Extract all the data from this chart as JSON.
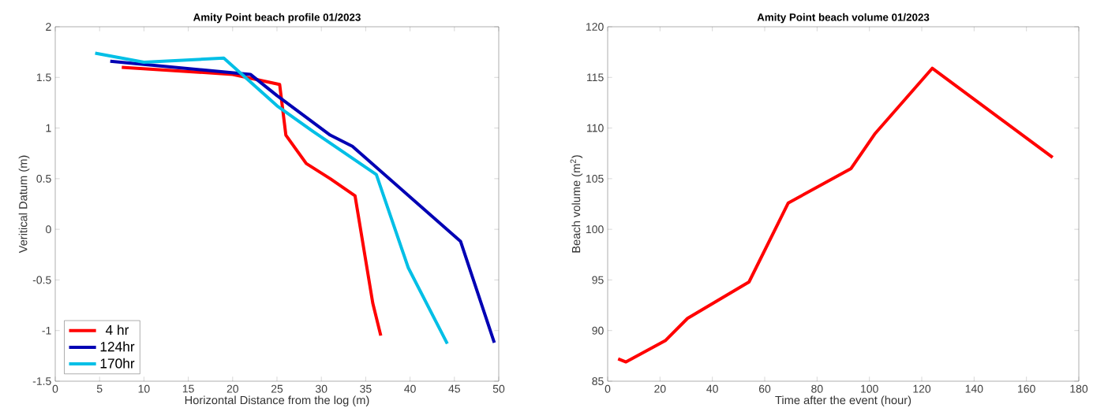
{
  "chart_data": [
    {
      "type": "line",
      "title": "Amity Point beach profile 01/2023",
      "xlabel": "Horizontal Distance from the log (m)",
      "ylabel": "Veritical Datum (m)",
      "xlim": [
        0,
        50
      ],
      "ylim": [
        -1.5,
        2
      ],
      "xticks": [
        0,
        5,
        10,
        15,
        20,
        25,
        30,
        35,
        40,
        45,
        50
      ],
      "yticks": [
        -1.5,
        -1,
        -0.5,
        0,
        0.5,
        1,
        1.5,
        2
      ],
      "legend": "bottom left",
      "grid": false,
      "series": [
        {
          "name": "4 hr",
          "color": "#ff0000",
          "x": [
            7.5,
            20,
            25.3,
            26,
            28.3,
            31,
            33.8,
            35.8,
            36.7
          ],
          "values": [
            1.6,
            1.53,
            1.43,
            0.93,
            0.65,
            0.5,
            0.33,
            -0.73,
            -1.05
          ]
        },
        {
          "name": "124hr",
          "color": "#0000b4",
          "x": [
            6.2,
            22,
            25,
            31,
            33.5,
            45.7,
            49.5
          ],
          "values": [
            1.66,
            1.53,
            1.32,
            0.93,
            0.82,
            -0.12,
            -1.12
          ]
        },
        {
          "name": "170hr",
          "color": "#00bfe6",
          "x": [
            4.5,
            10,
            19,
            25,
            29,
            36.2,
            39.8,
            44.2
          ],
          "values": [
            1.74,
            1.65,
            1.69,
            1.22,
            0.97,
            0.54,
            -0.38,
            -1.13
          ]
        }
      ]
    },
    {
      "type": "line",
      "title": "Amity Point beach volume 01/2023",
      "xlabel": "Time after the event (hour)",
      "ylabel": "Beach volume (m$^{2}$)",
      "xlim": [
        0,
        180
      ],
      "ylim": [
        85,
        120
      ],
      "xticks": [
        0,
        20,
        40,
        60,
        80,
        100,
        120,
        140,
        160,
        180
      ],
      "yticks": [
        85,
        90,
        95,
        100,
        105,
        110,
        115,
        120
      ],
      "grid": false,
      "series": [
        {
          "color": "#ff0000",
          "x": [
            4,
            7,
            22,
            30.5,
            54,
            69,
            93,
            102,
            124,
            170
          ],
          "values": [
            87.2,
            86.9,
            89,
            91.2,
            94.8,
            102.6,
            106,
            109.4,
            115.9,
            107.1
          ]
        }
      ]
    }
  ]
}
